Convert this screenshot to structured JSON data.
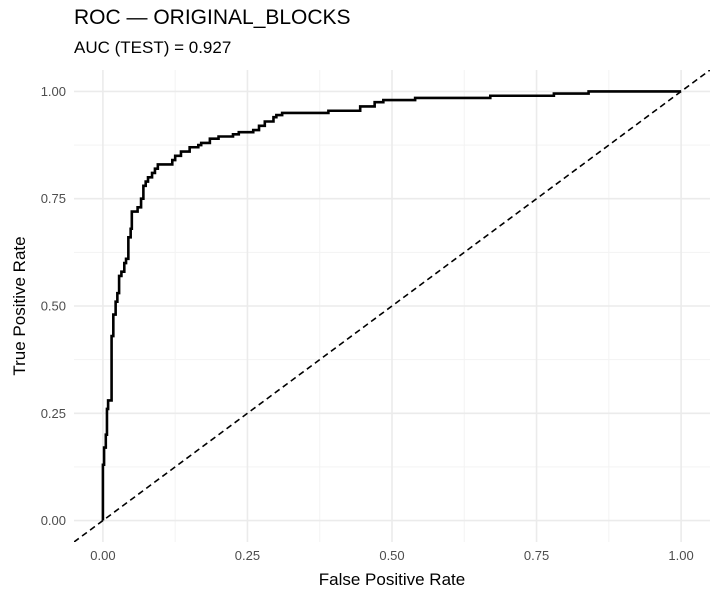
{
  "chart_data": {
    "type": "line",
    "title": "ROC — ORIGINAL_BLOCKS",
    "subtitle": "AUC (TEST) = 0.927",
    "xlabel": "False Positive Rate",
    "ylabel": "True Positive Rate",
    "xlim": [
      -0.05,
      1.05
    ],
    "ylim": [
      -0.05,
      1.05
    ],
    "x_ticks": [
      "0.00",
      "0.25",
      "0.50",
      "0.75",
      "1.00"
    ],
    "y_ticks": [
      "0.00",
      "0.25",
      "0.50",
      "0.75",
      "1.00"
    ],
    "grid": true,
    "series": [
      {
        "style": "solid",
        "color": "#000000",
        "points": [
          [
            0.0,
            0.0
          ],
          [
            0.0,
            0.13
          ],
          [
            0.002,
            0.13
          ],
          [
            0.002,
            0.17
          ],
          [
            0.005,
            0.17
          ],
          [
            0.005,
            0.2
          ],
          [
            0.007,
            0.2
          ],
          [
            0.007,
            0.26
          ],
          [
            0.009,
            0.26
          ],
          [
            0.009,
            0.28
          ],
          [
            0.015,
            0.28
          ],
          [
            0.015,
            0.43
          ],
          [
            0.018,
            0.43
          ],
          [
            0.018,
            0.48
          ],
          [
            0.022,
            0.48
          ],
          [
            0.022,
            0.51
          ],
          [
            0.025,
            0.51
          ],
          [
            0.025,
            0.53
          ],
          [
            0.028,
            0.53
          ],
          [
            0.028,
            0.57
          ],
          [
            0.032,
            0.57
          ],
          [
            0.032,
            0.58
          ],
          [
            0.037,
            0.58
          ],
          [
            0.037,
            0.6
          ],
          [
            0.04,
            0.6
          ],
          [
            0.04,
            0.61
          ],
          [
            0.044,
            0.61
          ],
          [
            0.044,
            0.66
          ],
          [
            0.048,
            0.66
          ],
          [
            0.048,
            0.68
          ],
          [
            0.05,
            0.68
          ],
          [
            0.05,
            0.72
          ],
          [
            0.06,
            0.72
          ],
          [
            0.06,
            0.73
          ],
          [
            0.066,
            0.73
          ],
          [
            0.066,
            0.75
          ],
          [
            0.07,
            0.75
          ],
          [
            0.07,
            0.78
          ],
          [
            0.074,
            0.78
          ],
          [
            0.074,
            0.79
          ],
          [
            0.078,
            0.79
          ],
          [
            0.078,
            0.8
          ],
          [
            0.085,
            0.8
          ],
          [
            0.085,
            0.81
          ],
          [
            0.09,
            0.81
          ],
          [
            0.09,
            0.82
          ],
          [
            0.095,
            0.82
          ],
          [
            0.095,
            0.83
          ],
          [
            0.12,
            0.83
          ],
          [
            0.12,
            0.84
          ],
          [
            0.125,
            0.84
          ],
          [
            0.125,
            0.85
          ],
          [
            0.135,
            0.85
          ],
          [
            0.135,
            0.86
          ],
          [
            0.15,
            0.86
          ],
          [
            0.15,
            0.87
          ],
          [
            0.165,
            0.87
          ],
          [
            0.165,
            0.875
          ],
          [
            0.17,
            0.875
          ],
          [
            0.17,
            0.88
          ],
          [
            0.185,
            0.88
          ],
          [
            0.185,
            0.89
          ],
          [
            0.2,
            0.89
          ],
          [
            0.2,
            0.895
          ],
          [
            0.225,
            0.895
          ],
          [
            0.225,
            0.9
          ],
          [
            0.235,
            0.9
          ],
          [
            0.235,
            0.905
          ],
          [
            0.26,
            0.905
          ],
          [
            0.26,
            0.91
          ],
          [
            0.27,
            0.91
          ],
          [
            0.27,
            0.92
          ],
          [
            0.28,
            0.92
          ],
          [
            0.28,
            0.93
          ],
          [
            0.295,
            0.93
          ],
          [
            0.295,
            0.94
          ],
          [
            0.3,
            0.94
          ],
          [
            0.3,
            0.945
          ],
          [
            0.31,
            0.945
          ],
          [
            0.31,
            0.95
          ],
          [
            0.39,
            0.95
          ],
          [
            0.39,
            0.955
          ],
          [
            0.445,
            0.955
          ],
          [
            0.445,
            0.965
          ],
          [
            0.47,
            0.965
          ],
          [
            0.47,
            0.975
          ],
          [
            0.485,
            0.975
          ],
          [
            0.485,
            0.98
          ],
          [
            0.54,
            0.98
          ],
          [
            0.54,
            0.985
          ],
          [
            0.67,
            0.985
          ],
          [
            0.67,
            0.99
          ],
          [
            0.78,
            0.99
          ],
          [
            0.78,
            0.995
          ],
          [
            0.84,
            0.995
          ],
          [
            0.84,
            1.0
          ],
          [
            1.0,
            1.0
          ]
        ]
      },
      {
        "style": "dashed",
        "color": "#000000",
        "points": [
          [
            -0.05,
            -0.05
          ],
          [
            1.05,
            1.05
          ]
        ]
      }
    ]
  }
}
